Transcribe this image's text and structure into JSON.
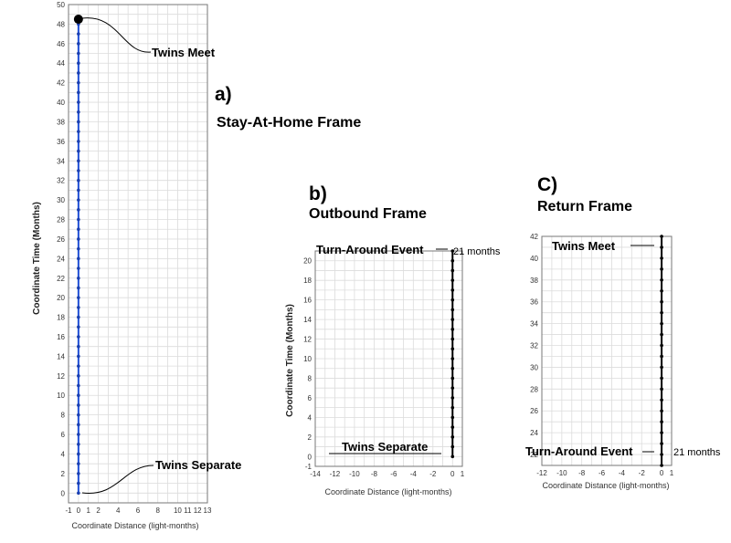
{
  "chart_data": [
    {
      "type": "scatter",
      "panel_letter": "a)",
      "title": "Stay-At-Home Frame",
      "xlabel": "Coordinate Distance (light-months)",
      "ylabel": "Coordinate Time (Months)",
      "xlim": [
        -1,
        13
      ],
      "ylim": [
        -1,
        50
      ],
      "x_ticks": [
        -1,
        0,
        1,
        2,
        3,
        4,
        5,
        6,
        7,
        8,
        9,
        10,
        11,
        12,
        13
      ],
      "x_tick_labels": [
        "-1",
        "0",
        "1",
        "2",
        "4",
        "6",
        "8",
        "10",
        "11",
        "12",
        "13"
      ],
      "x_tick_label_values": [
        -1,
        0,
        1,
        2,
        4,
        6,
        8,
        10,
        11,
        12,
        13
      ],
      "y_ticks": [
        0,
        2,
        4,
        6,
        8,
        10,
        12,
        14,
        16,
        18,
        20,
        22,
        24,
        26,
        28,
        30,
        32,
        34,
        36,
        38,
        40,
        42,
        44,
        46,
        48,
        50
      ],
      "grid": true,
      "line_color": "#1f4fd6",
      "series": [
        {
          "values_x": [
            0
          ],
          "values_y": [
            0,
            1,
            2,
            3,
            4,
            5,
            6,
            7,
            8,
            9,
            10,
            11,
            12,
            13,
            14,
            15,
            16,
            17,
            18,
            19,
            20,
            21,
            22,
            23,
            24,
            25,
            26,
            27,
            28,
            29,
            30,
            31,
            32,
            33,
            34,
            35,
            36,
            37,
            38,
            39,
            40,
            41,
            42,
            43,
            44,
            45,
            46,
            47,
            48
          ]
        }
      ],
      "annotations": [
        {
          "text": "Twins Meet",
          "x": 0,
          "y": 48.5
        },
        {
          "text": "Twins Separate",
          "x": 0,
          "y": 0
        }
      ]
    },
    {
      "type": "scatter",
      "panel_letter": "b)",
      "title": "Outbound Frame",
      "xlabel": "Coordinate Distance (light-months)",
      "ylabel": "Coordinate Time (Months)",
      "xlim": [
        -14,
        1
      ],
      "ylim": [
        -1,
        21
      ],
      "x_ticks": [
        -14,
        -12,
        -10,
        -8,
        -6,
        -4,
        -2,
        0,
        1
      ],
      "y_ticks": [
        -1,
        0,
        2,
        4,
        6,
        8,
        10,
        12,
        14,
        16,
        18,
        20
      ],
      "grid": true,
      "line_color": "#000000",
      "series": [
        {
          "values_x": [
            0
          ],
          "values_y": [
            0,
            1,
            2,
            3,
            4,
            5,
            6,
            7,
            8,
            9,
            10,
            11,
            12,
            13,
            14,
            15,
            16,
            17,
            18,
            19,
            20,
            21
          ]
        }
      ],
      "annotations": [
        {
          "text": "Turn-Around Event",
          "x": 0,
          "y": 21
        },
        {
          "text": "21 months",
          "x": 0,
          "y": 21
        },
        {
          "text": "Twins Separate",
          "x": 0,
          "y": 0
        }
      ]
    },
    {
      "type": "scatter",
      "panel_letter": "C)",
      "title": "Return Frame",
      "xlabel": "Coordinate Distance (light-months)",
      "ylabel": "",
      "xlim": [
        -12,
        1
      ],
      "ylim": [
        21,
        42
      ],
      "x_ticks": [
        -12,
        -10,
        -8,
        -6,
        -4,
        -2,
        0,
        1
      ],
      "y_ticks": [
        22,
        24,
        26,
        28,
        30,
        32,
        34,
        36,
        38,
        40,
        42
      ],
      "grid": true,
      "line_color": "#000000",
      "series": [
        {
          "values_x": [
            0
          ],
          "values_y": [
            21,
            22,
            23,
            24,
            25,
            26,
            27,
            28,
            29,
            30,
            31,
            32,
            33,
            34,
            35,
            36,
            37,
            38,
            39,
            40,
            41,
            42
          ]
        }
      ],
      "annotations": [
        {
          "text": "Twins Meet",
          "x": 0,
          "y": 42
        },
        {
          "text": "Turn-Around Event",
          "x": 0,
          "y": 21
        },
        {
          "text": "21 months",
          "x": 0,
          "y": 21
        }
      ]
    }
  ]
}
